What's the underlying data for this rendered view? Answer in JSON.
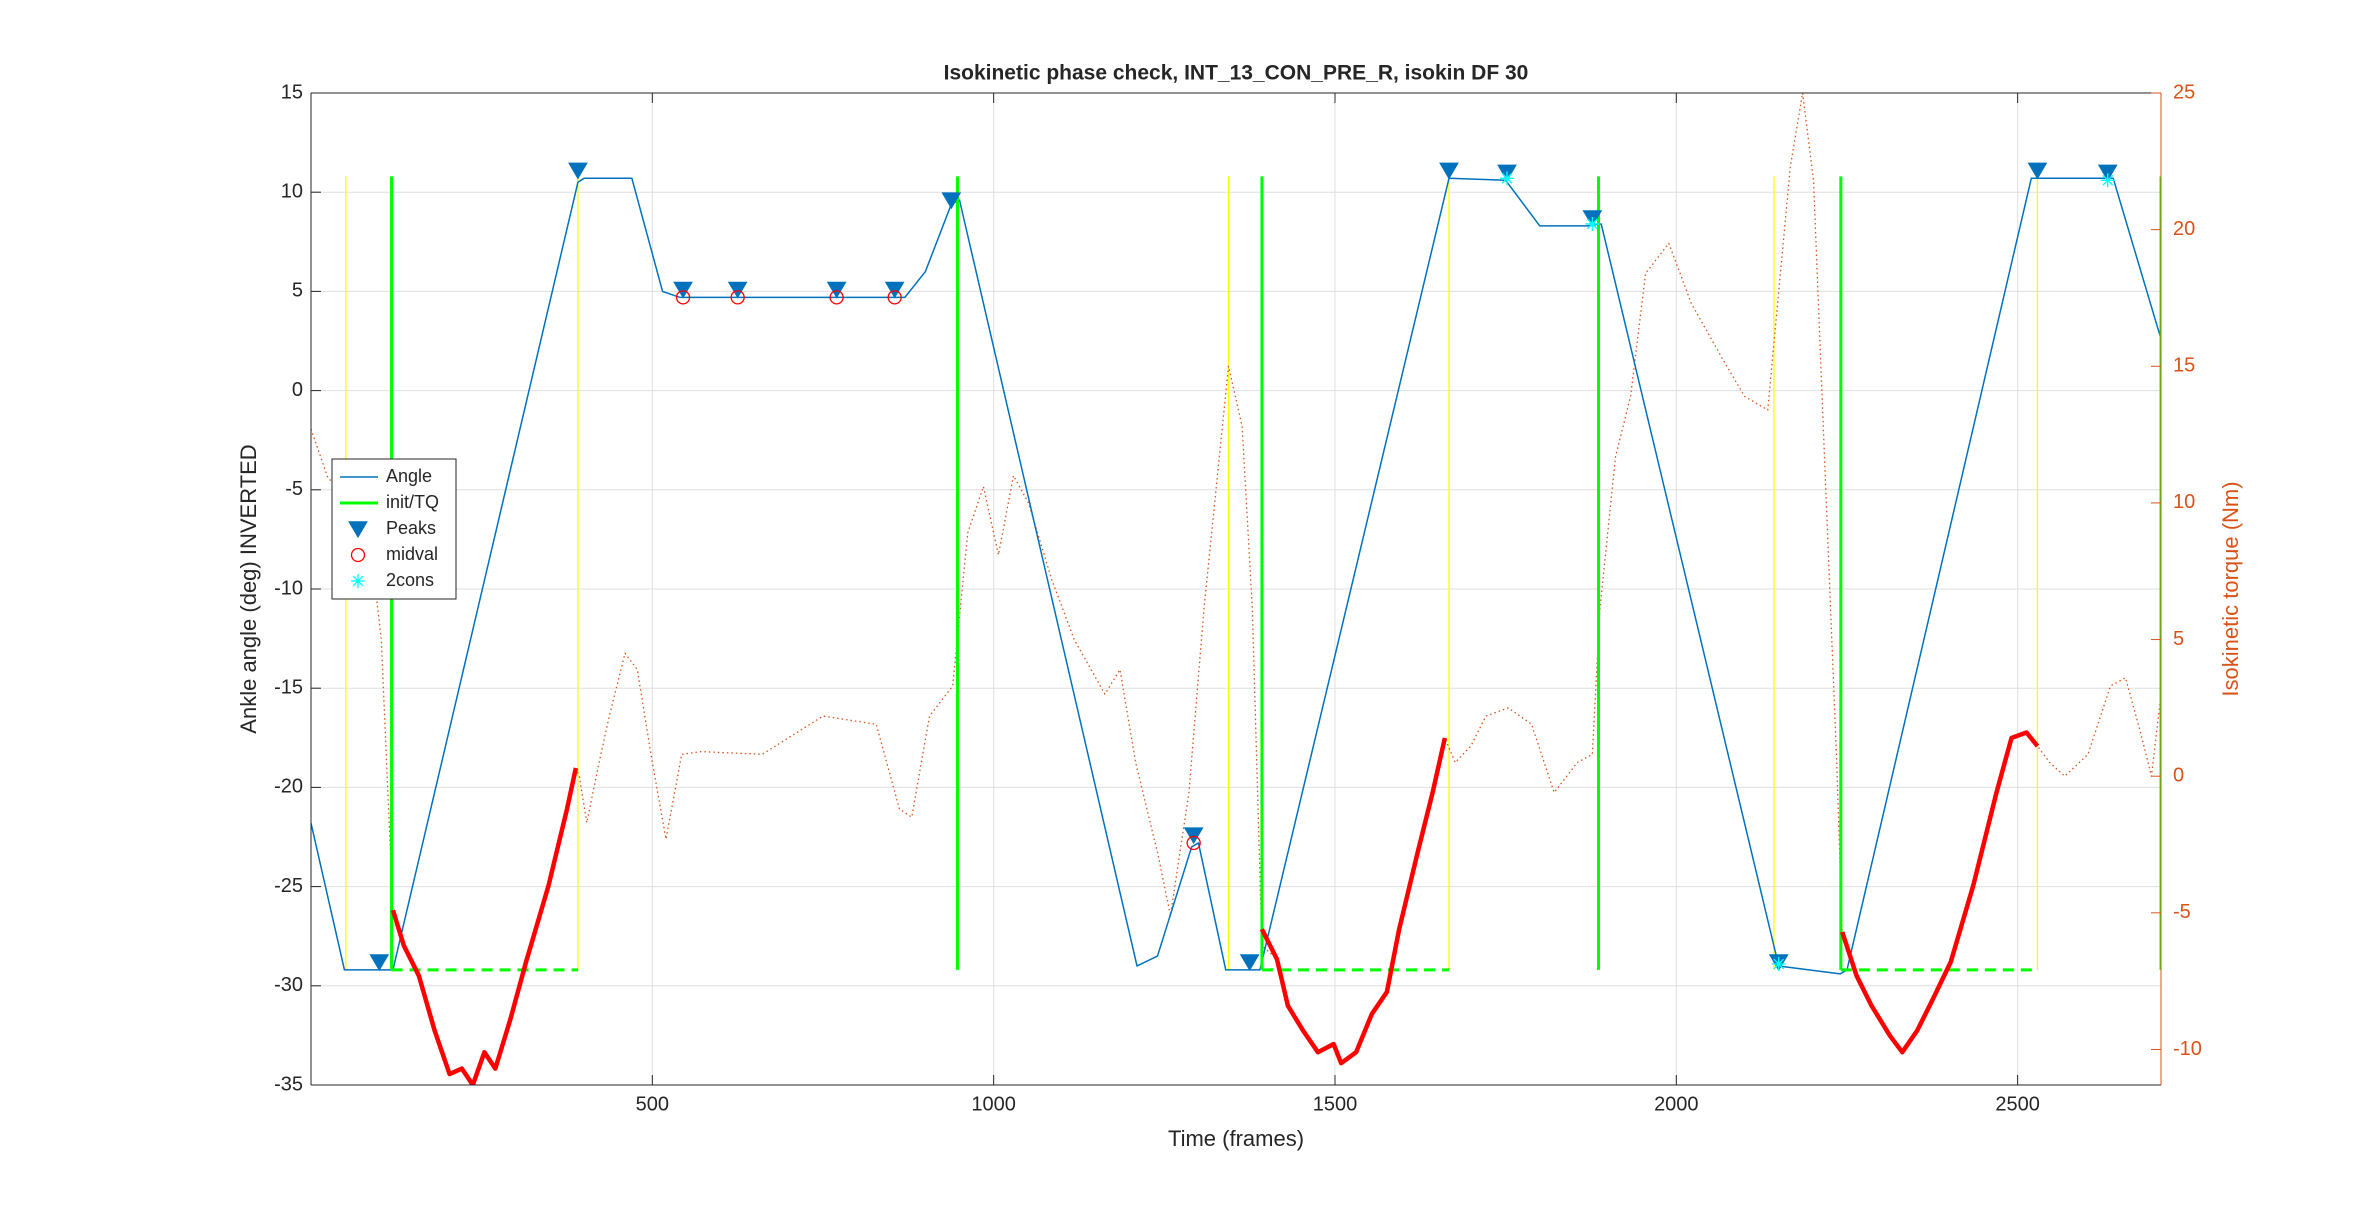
{
  "chart_data": {
    "type": "line",
    "title": "Isokinetic phase check, INT_13_CON_PRE_R, isokin DF 30",
    "xlabel": "Time (frames)",
    "ylabel": "Ankle angle (deg) INVERTED",
    "y2label": "Isokinetic torque (Nm)",
    "xlim": [
      0,
      2710
    ],
    "xticks": [
      500,
      1000,
      1500,
      2000,
      2500
    ],
    "ylim": [
      -35,
      15
    ],
    "yticks": [
      -35,
      -30,
      -25,
      -20,
      -15,
      -10,
      -5,
      0,
      5,
      10,
      15
    ],
    "y2lim": [
      -11.3,
      25
    ],
    "y2ticks": [
      -10,
      -5,
      0,
      5,
      10,
      15,
      20,
      25
    ],
    "y2color": "#d95319",
    "grid": true,
    "legend": "west",
    "series": [
      {
        "color": "#ffff00",
        "style": "vline",
        "x": [
          51,
          391,
          1344,
          1667,
          2143,
          2529
        ],
        "span": [
          -29.2,
          10.8
        ]
      },
      {
        "color": "#d95319",
        "style": "dotted",
        "axis": "y2",
        "x": [
          0,
          25,
          40,
          54,
          80,
          103,
          120,
          136,
          158,
          181,
          203,
          221,
          237,
          254,
          270,
          292,
          315,
          348,
          375,
          388,
          393,
          404,
          422,
          437,
          460,
          478,
          500,
          520,
          543,
          571,
          661,
          750,
          828,
          862,
          880,
          906,
          940,
          962,
          985,
          1007,
          1029,
          1051,
          1085,
          1118,
          1163,
          1185,
          1208,
          1241,
          1259,
          1286,
          1308,
          1344,
          1364,
          1379,
          1393,
          1415,
          1431,
          1453,
          1475,
          1498,
          1509,
          1531,
          1554,
          1576,
          1594,
          1621,
          1643,
          1661,
          1676,
          1699,
          1721,
          1754,
          1788,
          1821,
          1855,
          1877,
          1888,
          1911,
          1933,
          1955,
          1989,
          2022,
          2067,
          2100,
          2134,
          2145,
          2167,
          2185,
          2201,
          2217,
          2235,
          2243,
          2264,
          2286,
          2313,
          2331,
          2353,
          2375,
          2402,
          2435,
          2469,
          2491,
          2513,
          2529,
          2547,
          2569,
          2603,
          2636,
          2658,
          2680,
          2696,
          2710
        ],
        "values": [
          12.7,
          10.9,
          10.6,
          11.1,
          10.0,
          5.0,
          -4.9,
          -6.2,
          -7.3,
          -9.3,
          -10.9,
          -10.7,
          -11.3,
          -10.1,
          -10.7,
          -8.9,
          -6.8,
          -4.0,
          -1.2,
          0.3,
          0.0,
          -1.7,
          0.5,
          2.2,
          4.5,
          3.9,
          0.5,
          -2.3,
          0.8,
          0.9,
          0.8,
          2.2,
          1.9,
          -1.2,
          -1.5,
          2.2,
          3.3,
          8.9,
          10.6,
          8.1,
          11.0,
          10.0,
          7.2,
          5.0,
          3.0,
          3.9,
          0.5,
          -2.9,
          -5.1,
          -0.6,
          6.1,
          15.0,
          12.8,
          6.1,
          -6.2,
          -6.7,
          -8.4,
          -9.3,
          -10.1,
          -9.8,
          -10.5,
          -10.1,
          -8.7,
          -7.9,
          -5.6,
          -2.8,
          -0.6,
          1.4,
          0.5,
          1.1,
          2.2,
          2.5,
          1.9,
          -0.6,
          0.5,
          0.8,
          6.1,
          11.7,
          13.9,
          18.4,
          19.5,
          17.3,
          15.3,
          13.9,
          13.4,
          16.4,
          22.3,
          25.0,
          21.8,
          11.7,
          0.5,
          -5.7,
          -7.3,
          -8.4,
          -9.5,
          -10.1,
          -9.3,
          -8.2,
          -6.8,
          -4.0,
          -0.6,
          1.4,
          1.6,
          1.1,
          0.5,
          0.0,
          0.8,
          3.3,
          3.6,
          1.6,
          0.0,
          3.0
        ]
      },
      {
        "name": "Angle",
        "color": "#0072bd",
        "style": "line",
        "x": [
          0,
          49,
          120,
          391,
          400,
          470,
          515,
          540,
          870,
          900,
          938,
          950,
          1210,
          1240,
          1290,
          1300,
          1340,
          1390,
          1667,
          1750,
          1800,
          1870,
          1890,
          2150,
          2240,
          2250,
          2520,
          2640,
          2710
        ],
        "values": [
          -21.8,
          -29.2,
          -29.2,
          10.5,
          10.7,
          10.7,
          5.0,
          4.7,
          4.7,
          6.0,
          9.4,
          9.6,
          -29.0,
          -28.5,
          -23.0,
          -22.8,
          -29.2,
          -29.2,
          10.7,
          10.6,
          8.3,
          8.3,
          8.4,
          -29.0,
          -29.4,
          -29.2,
          10.7,
          10.7,
          2.6
        ]
      },
      {
        "name": "init/TQ",
        "color": "#00ff00",
        "style": "vline",
        "x": [
          118,
          947,
          1393,
          1886,
          2241,
          2710
        ],
        "span": [
          -29.2,
          10.8
        ],
        "dash_level": -29.2,
        "dash_segments": [
          [
            118,
            391
          ],
          [
            1393,
            1667
          ],
          [
            2241,
            2529
          ]
        ]
      },
      {
        "color": "#ff0000",
        "style": "thick",
        "axis": "y2",
        "x": [
          120,
          136,
          158,
          181,
          203,
          221,
          237,
          254,
          270,
          292,
          315,
          348,
          375,
          388,
          900,
          1393,
          1415,
          1431,
          1453,
          1475,
          1498,
          1509,
          1531,
          1554,
          1576,
          1594,
          1621,
          1643,
          1661,
          1950,
          2243,
          2264,
          2286,
          2313,
          2331,
          2353,
          2375,
          2402,
          2435,
          2469,
          2491,
          2513,
          2529
        ],
        "values": [
          -4.9,
          -6.2,
          -7.3,
          -9.3,
          -10.9,
          -10.7,
          -11.3,
          -10.1,
          -10.7,
          -8.9,
          -6.8,
          -4.0,
          -1.2,
          0.3,
          null,
          -5.6,
          -6.7,
          -8.4,
          -9.3,
          -10.1,
          -9.8,
          -10.5,
          -10.1,
          -8.7,
          -7.9,
          -5.6,
          -2.8,
          -0.6,
          1.4,
          null,
          -5.7,
          -7.3,
          -8.4,
          -9.5,
          -10.1,
          -9.3,
          -8.2,
          -6.8,
          -4.0,
          -0.6,
          1.4,
          1.6,
          1.1
        ]
      },
      {
        "name": "Peaks",
        "color": "#0072bd",
        "style": "marker",
        "marker": "triangle-down",
        "x": [
          100,
          391,
          545,
          625,
          770,
          855,
          938,
          1293,
          1375,
          1667,
          1752,
          1877,
          2150,
          2529,
          2632
        ],
        "values": [
          -28.8,
          11.1,
          5.1,
          5.1,
          5.1,
          5.1,
          9.6,
          -22.4,
          -28.8,
          11.1,
          11.0,
          8.7,
          -28.8,
          11.1,
          11.0
        ]
      },
      {
        "name": "midval",
        "color": "#ff0000",
        "style": "marker",
        "marker": "circle",
        "x": [
          545,
          625,
          770,
          855,
          1293
        ],
        "values": [
          4.7,
          4.7,
          4.7,
          4.7,
          -22.8
        ]
      },
      {
        "name": "2cons",
        "color": "#00ffff",
        "style": "marker",
        "marker": "star",
        "x": [
          1752,
          1877,
          2150,
          2632
        ],
        "values": [
          10.7,
          8.4,
          -28.9,
          10.6
        ]
      }
    ]
  }
}
